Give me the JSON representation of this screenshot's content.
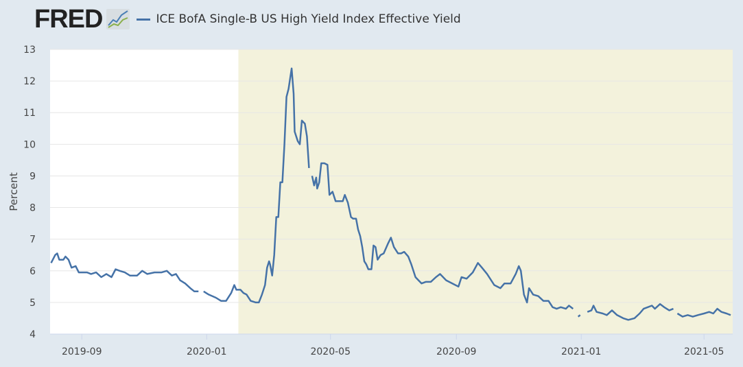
{
  "header": {
    "logo": "FRED",
    "series_title": "ICE BofA Single-B US High Yield Index Effective Yield"
  },
  "colors": {
    "line": "#4572a7",
    "recession": "#f3f2dc",
    "plot_bg": "#ffffff",
    "grid": "#e6e6e6"
  },
  "chart_data": {
    "type": "line",
    "title": "ICE BofA Single-B US High Yield Index Effective Yield",
    "xlabel": "",
    "ylabel": "Percent",
    "x_units": "days since 2019-08-01",
    "xlim": [
      0,
      667
    ],
    "ylim": [
      4,
      13
    ],
    "yticks": [
      4,
      5,
      6,
      7,
      8,
      9,
      10,
      11,
      12,
      13
    ],
    "xticks": [
      {
        "day": 31,
        "label": "2019-09"
      },
      {
        "day": 153,
        "label": "2020-01"
      },
      {
        "day": 274,
        "label": "2020-05"
      },
      {
        "day": 397,
        "label": "2020-09"
      },
      {
        "day": 519,
        "label": "2021-01"
      },
      {
        "day": 639,
        "label": "2021-05"
      }
    ],
    "recession": {
      "start_day": 184,
      "end_day": 667
    },
    "legend": "top-left",
    "series": [
      {
        "name": "ICE BofA Single-B US High Yield Index Effective Yield",
        "points": [
          [
            1,
            6.25
          ],
          [
            5,
            6.5
          ],
          [
            7,
            6.55
          ],
          [
            9,
            6.35
          ],
          [
            13,
            6.35
          ],
          [
            15,
            6.45
          ],
          [
            18,
            6.35
          ],
          [
            21,
            6.1
          ],
          [
            25,
            6.15
          ],
          [
            28,
            5.95
          ],
          [
            31,
            5.95
          ],
          [
            36,
            5.95
          ],
          [
            40,
            5.9
          ],
          [
            45,
            5.95
          ],
          [
            50,
            5.8
          ],
          [
            55,
            5.9
          ],
          [
            60,
            5.8
          ],
          [
            64,
            6.05
          ],
          [
            68,
            6.0
          ],
          [
            73,
            5.95
          ],
          [
            78,
            5.85
          ],
          [
            85,
            5.85
          ],
          [
            90,
            6.0
          ],
          [
            95,
            5.9
          ],
          [
            102,
            5.95
          ],
          [
            109,
            5.95
          ],
          [
            114,
            6.0
          ],
          [
            119,
            5.85
          ],
          [
            123,
            5.9
          ],
          [
            127,
            5.7
          ],
          [
            132,
            5.6
          ],
          [
            137,
            5.45
          ],
          [
            141,
            5.35
          ],
          [
            145,
            5.35
          ],
          null,
          [
            150,
            5.35
          ],
          [
            155,
            5.25
          ],
          [
            162,
            5.15
          ],
          [
            167,
            5.05
          ],
          [
            172,
            5.05
          ],
          [
            177,
            5.3
          ],
          [
            180,
            5.55
          ],
          [
            182,
            5.4
          ],
          [
            186,
            5.4
          ],
          [
            189,
            5.3
          ],
          [
            192,
            5.25
          ],
          [
            196,
            5.05
          ],
          [
            201,
            5.0
          ],
          [
            204,
            5.0
          ],
          [
            207,
            5.25
          ],
          [
            210,
            5.55
          ],
          [
            212,
            6.1
          ],
          [
            214,
            6.3
          ],
          [
            215,
            6.2
          ],
          [
            217,
            5.85
          ],
          [
            219,
            6.5
          ],
          [
            221,
            7.7
          ],
          [
            223,
            7.7
          ],
          [
            225,
            8.8
          ],
          [
            227,
            8.8
          ],
          [
            229,
            10.0
          ],
          [
            231,
            11.5
          ],
          [
            233,
            11.75
          ],
          [
            236,
            12.4
          ],
          [
            238,
            11.6
          ],
          [
            239,
            10.4
          ],
          [
            242,
            10.1
          ],
          [
            244,
            10.0
          ],
          [
            246,
            10.75
          ],
          [
            249,
            10.65
          ],
          [
            251,
            10.25
          ],
          [
            253,
            9.25
          ],
          null,
          [
            256,
            9.0
          ],
          [
            258,
            8.7
          ],
          [
            260,
            8.95
          ],
          [
            261,
            8.6
          ],
          [
            263,
            8.8
          ],
          [
            265,
            9.4
          ],
          [
            268,
            9.4
          ],
          [
            271,
            9.35
          ],
          [
            273,
            8.4
          ],
          [
            276,
            8.5
          ],
          [
            279,
            8.2
          ],
          [
            283,
            8.2
          ],
          [
            286,
            8.2
          ],
          [
            288,
            8.4
          ],
          [
            291,
            8.15
          ],
          [
            294,
            7.7
          ],
          [
            296,
            7.65
          ],
          [
            299,
            7.65
          ],
          [
            301,
            7.3
          ],
          [
            303,
            7.1
          ],
          [
            305,
            6.75
          ],
          [
            307,
            6.3
          ],
          [
            309,
            6.2
          ],
          [
            311,
            6.05
          ],
          [
            314,
            6.05
          ],
          [
            316,
            6.8
          ],
          [
            318,
            6.75
          ],
          [
            320,
            6.35
          ],
          [
            323,
            6.5
          ],
          [
            326,
            6.55
          ],
          [
            330,
            6.85
          ],
          [
            333,
            7.05
          ],
          [
            336,
            6.75
          ],
          [
            340,
            6.55
          ],
          [
            343,
            6.55
          ],
          [
            346,
            6.6
          ],
          [
            350,
            6.45
          ],
          [
            353,
            6.2
          ],
          [
            357,
            5.8
          ],
          [
            360,
            5.7
          ],
          [
            363,
            5.6
          ],
          [
            367,
            5.65
          ],
          [
            372,
            5.65
          ],
          [
            377,
            5.8
          ],
          [
            381,
            5.9
          ],
          [
            387,
            5.7
          ],
          [
            393,
            5.6
          ],
          [
            399,
            5.5
          ],
          [
            402,
            5.8
          ],
          [
            407,
            5.75
          ],
          [
            413,
            5.95
          ],
          [
            418,
            6.25
          ],
          [
            422,
            6.1
          ],
          [
            427,
            5.9
          ],
          [
            434,
            5.55
          ],
          [
            440,
            5.45
          ],
          [
            444,
            5.6
          ],
          [
            450,
            5.6
          ],
          [
            455,
            5.9
          ],
          [
            458,
            6.15
          ],
          [
            460,
            6.0
          ],
          [
            463,
            5.25
          ],
          [
            466,
            5.0
          ],
          [
            468,
            5.45
          ],
          [
            472,
            5.25
          ],
          [
            477,
            5.2
          ],
          [
            482,
            5.05
          ],
          [
            487,
            5.05
          ],
          [
            491,
            4.85
          ],
          [
            495,
            4.8
          ],
          [
            499,
            4.85
          ],
          [
            504,
            4.8
          ],
          [
            507,
            4.9
          ],
          [
            511,
            4.8
          ],
          null,
          [
            516,
            4.55
          ],
          [
            518,
            4.6
          ],
          null,
          [
            525,
            4.7
          ],
          [
            529,
            4.75
          ],
          [
            531,
            4.9
          ],
          [
            534,
            4.7
          ],
          [
            540,
            4.65
          ],
          [
            544,
            4.6
          ],
          [
            549,
            4.75
          ],
          [
            554,
            4.6
          ],
          [
            560,
            4.5
          ],
          [
            565,
            4.45
          ],
          [
            571,
            4.5
          ],
          [
            576,
            4.65
          ],
          [
            580,
            4.8
          ],
          [
            584,
            4.85
          ],
          [
            588,
            4.9
          ],
          [
            591,
            4.8
          ],
          [
            596,
            4.95
          ],
          [
            600,
            4.85
          ],
          [
            605,
            4.75
          ],
          [
            609,
            4.8
          ],
          null,
          [
            613,
            4.65
          ],
          [
            618,
            4.55
          ],
          [
            623,
            4.6
          ],
          [
            628,
            4.55
          ],
          [
            633,
            4.6
          ],
          [
            639,
            4.65
          ],
          [
            644,
            4.7
          ],
          [
            648,
            4.65
          ],
          [
            652,
            4.8
          ],
          [
            656,
            4.7
          ],
          [
            661,
            4.65
          ],
          [
            665,
            4.6
          ]
        ]
      }
    ]
  }
}
